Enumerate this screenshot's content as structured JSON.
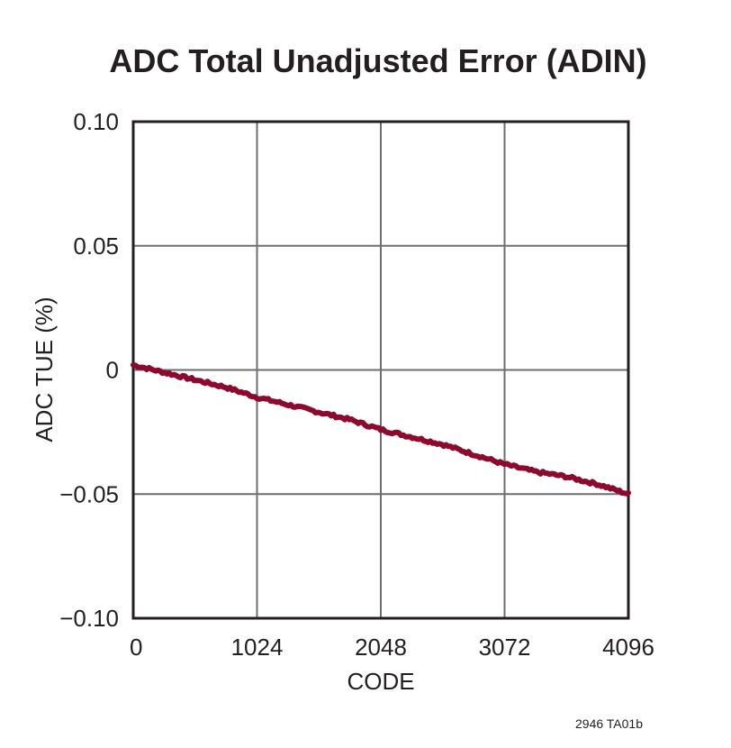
{
  "chart_data": {
    "type": "line",
    "title": "ADC Total Unadjusted Error (ADIN)",
    "xlabel": "CODE",
    "ylabel": "ADC TUE (%)",
    "xlim": [
      0,
      4096
    ],
    "ylim": [
      -0.1,
      0.1
    ],
    "x_ticks": [
      0,
      1024,
      2048,
      3072,
      4096
    ],
    "x_tick_labels": [
      "0",
      "1024",
      "2048",
      "3072",
      "4096"
    ],
    "y_ticks": [
      0.1,
      0.05,
      0,
      -0.05,
      -0.1
    ],
    "y_tick_labels": [
      "0.10",
      "0.05",
      "0",
      "−0.05",
      "−0.10"
    ],
    "grid": true,
    "legend": null,
    "series": [
      {
        "name": "ADC TUE",
        "color": "#8b0a2e",
        "x": [
          0,
          256,
          512,
          768,
          1024,
          1280,
          1536,
          1792,
          2048,
          2304,
          2560,
          2816,
          3072,
          3328,
          3584,
          3840,
          4096
        ],
        "values": [
          0.002,
          -0.001,
          -0.004,
          -0.007,
          -0.011,
          -0.014,
          -0.017,
          -0.02,
          -0.024,
          -0.027,
          -0.03,
          -0.034,
          -0.038,
          -0.041,
          -0.043,
          -0.046,
          -0.05
        ]
      }
    ],
    "annotations": [
      "2946 TA01b"
    ]
  },
  "figure_id": "2946 TA01b",
  "colors": {
    "line": "#8b0a2e",
    "frame": "#231f20",
    "grid": "#6d6e71",
    "text": "#231f20"
  }
}
